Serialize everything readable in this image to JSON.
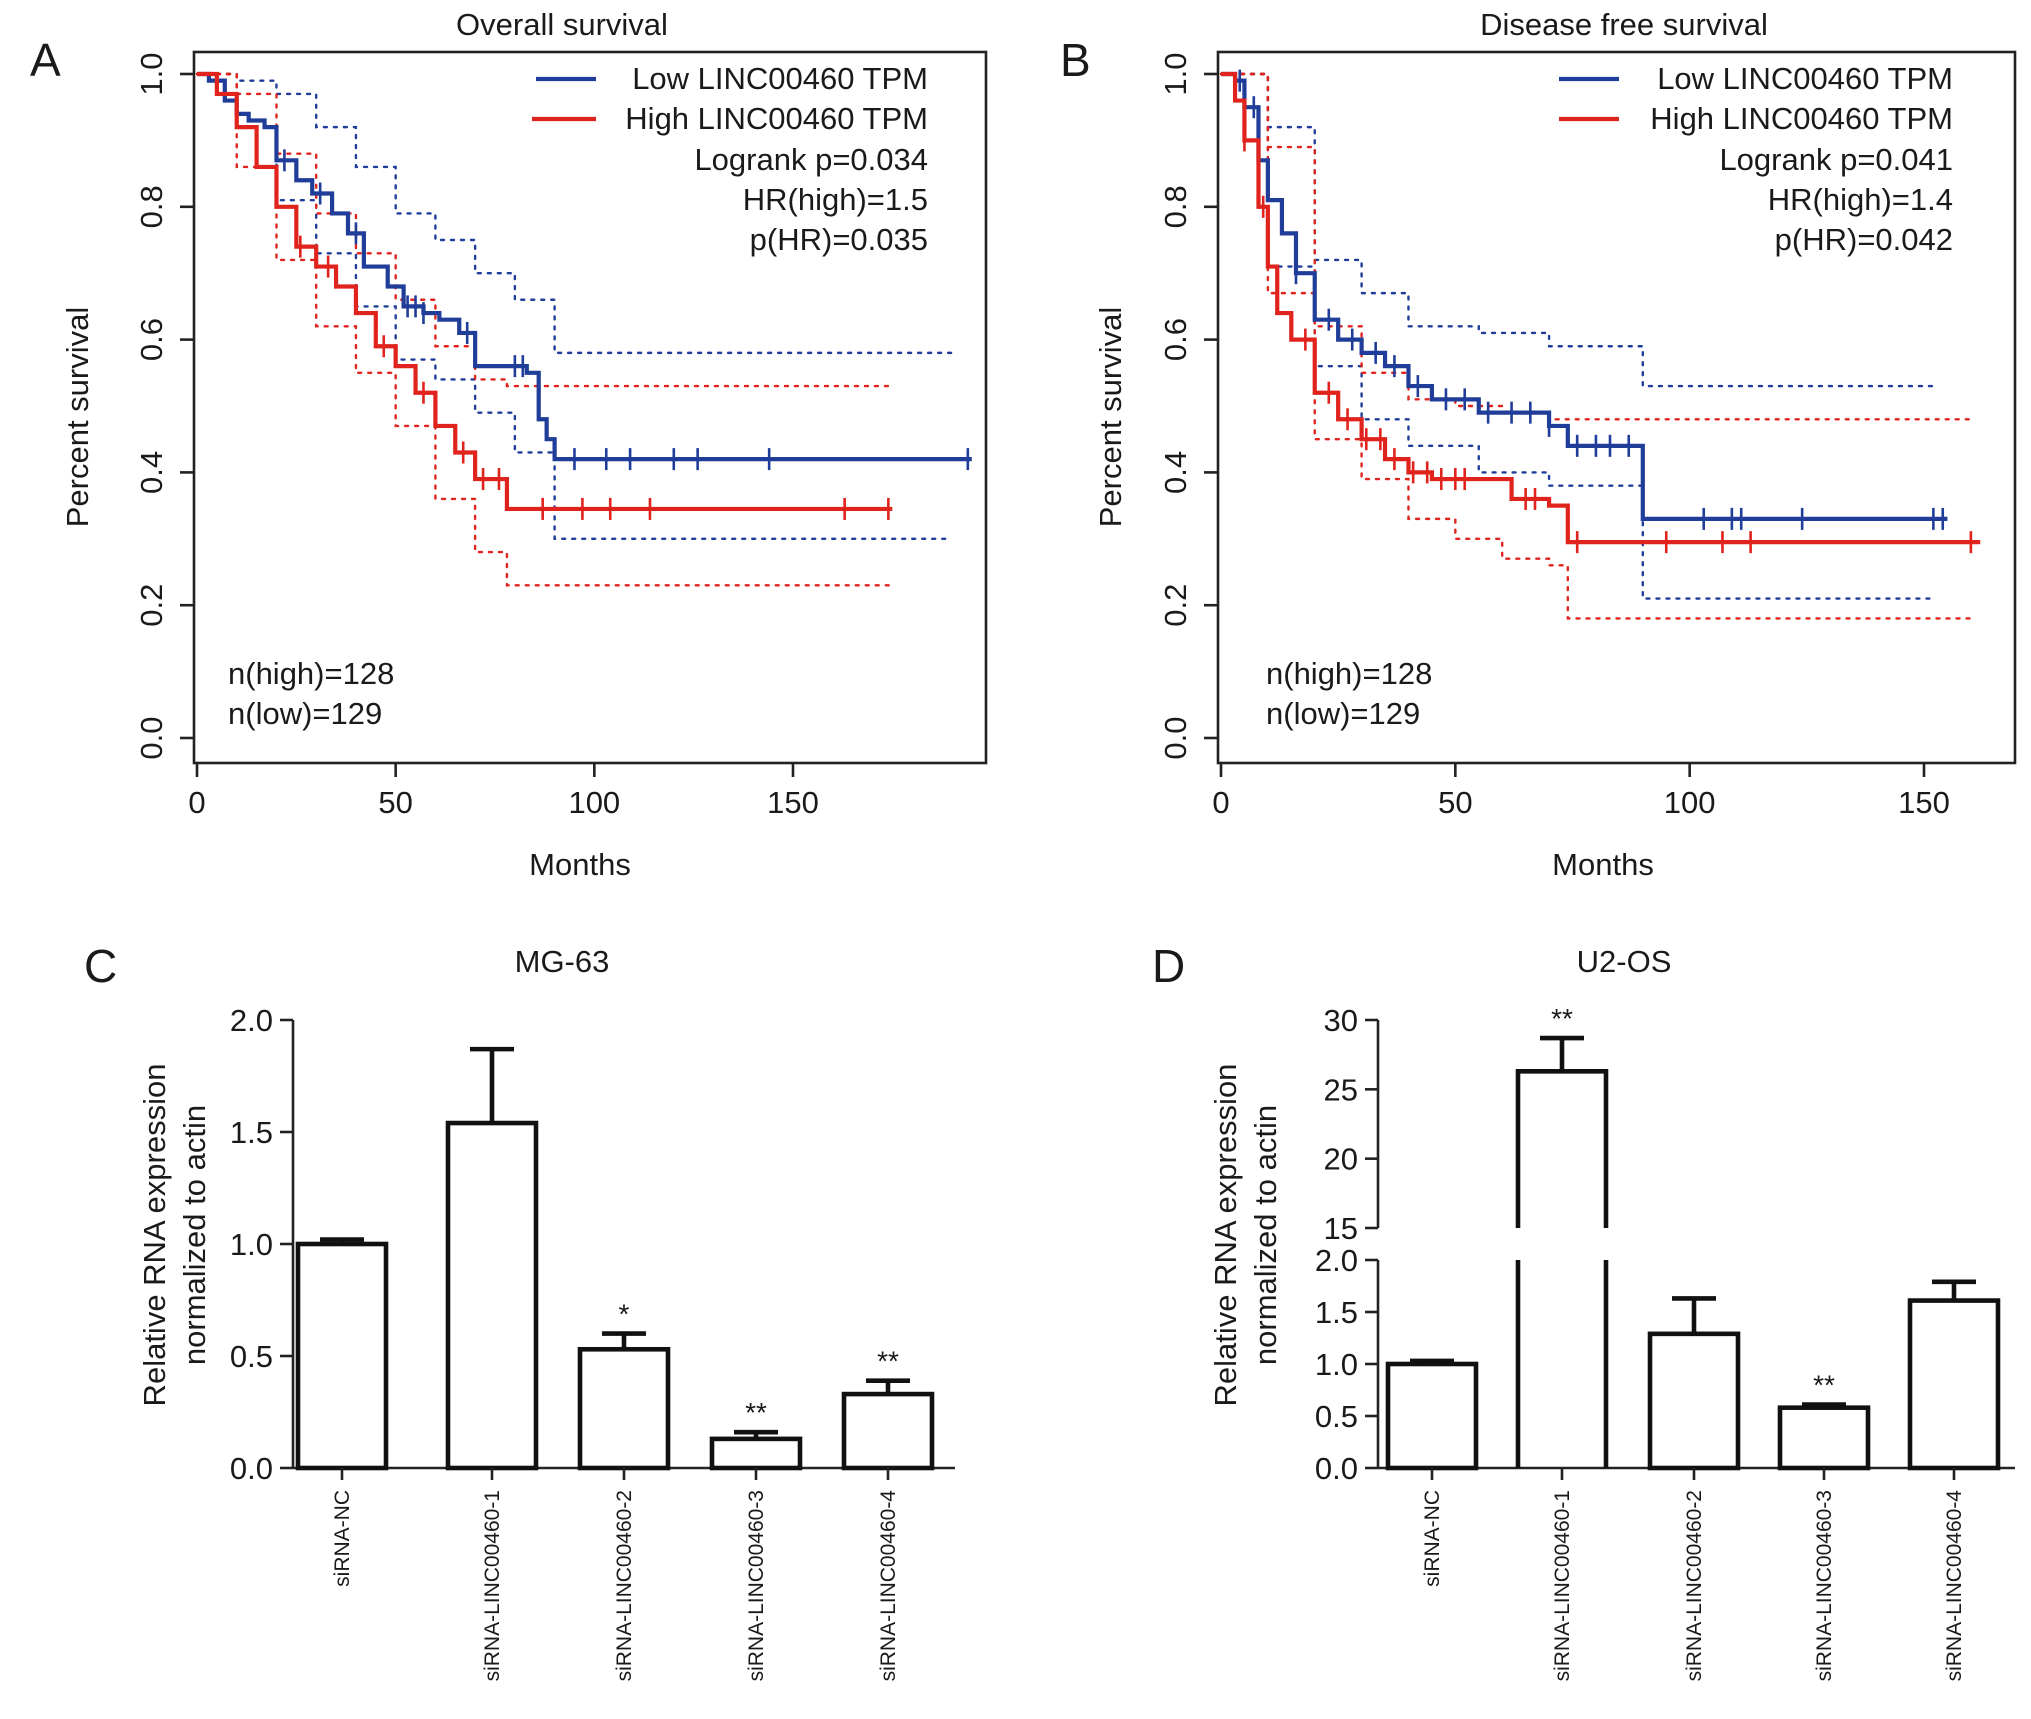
{
  "colors": {
    "low": "#1f3d99",
    "high": "#e0231c",
    "axis": "#222222",
    "bar": "#111111"
  },
  "chart_data": [
    {
      "panel": "A",
      "type": "line",
      "title": "Overall survival",
      "xlabel": "Months",
      "ylabel": "Percent survival",
      "xlim": [
        0,
        195
      ],
      "ylim": [
        0,
        1.0
      ],
      "xticks": [
        "0",
        "50",
        "100",
        "150"
      ],
      "yticks": [
        "0.0",
        "0.2",
        "0.4",
        "0.6",
        "0.8",
        "1.0"
      ],
      "legend": [
        "Low LINC00460 TPM",
        "High LINC00460 TPM"
      ],
      "stats": [
        "Logrank p=0.034",
        "HR(high)=1.5",
        "p(HR)=0.035"
      ],
      "n_labels": [
        "n(high)=128",
        "n(low)=129"
      ],
      "series": [
        {
          "name": "Low LINC00460 TPM",
          "color": "low",
          "x": [
            0,
            3,
            7,
            10,
            13,
            17,
            20,
            25,
            29,
            34,
            38,
            42,
            48,
            52,
            57,
            61,
            66,
            70,
            83,
            86,
            88,
            90,
            195
          ],
          "y": [
            1.0,
            0.99,
            0.96,
            0.94,
            0.93,
            0.92,
            0.87,
            0.84,
            0.82,
            0.79,
            0.76,
            0.71,
            0.68,
            0.65,
            0.64,
            0.63,
            0.61,
            0.56,
            0.55,
            0.48,
            0.45,
            0.42,
            0.42
          ],
          "censor_x": [
            22,
            31,
            40,
            53,
            55,
            57,
            68,
            80,
            82,
            95,
            103,
            109,
            120,
            126,
            144,
            194
          ],
          "ci_upper": {
            "x": [
              0,
              10,
              20,
              30,
              40,
              50,
              60,
              70,
              80,
              90,
              190
            ],
            "y": [
              1.0,
              0.99,
              0.97,
              0.92,
              0.86,
              0.79,
              0.75,
              0.7,
              0.66,
              0.58,
              0.58
            ]
          },
          "ci_lower": {
            "x": [
              0,
              10,
              20,
              30,
              40,
              50,
              60,
              70,
              80,
              90,
              190
            ],
            "y": [
              1.0,
              0.92,
              0.81,
              0.73,
              0.65,
              0.57,
              0.54,
              0.49,
              0.43,
              0.3,
              0.3
            ]
          }
        },
        {
          "name": "High LINC00460 TPM",
          "color": "high",
          "x": [
            0,
            5,
            10,
            15,
            20,
            25,
            30,
            35,
            40,
            45,
            50,
            55,
            60,
            65,
            70,
            77,
            78,
            175
          ],
          "y": [
            1.0,
            0.97,
            0.92,
            0.86,
            0.8,
            0.74,
            0.71,
            0.68,
            0.64,
            0.59,
            0.56,
            0.52,
            0.47,
            0.43,
            0.39,
            0.39,
            0.345,
            0.345
          ],
          "censor_x": [
            26,
            33,
            47,
            57,
            67,
            72,
            76,
            87,
            97,
            104,
            114,
            163,
            174
          ],
          "ci_upper": {
            "x": [
              0,
              10,
              20,
              30,
              40,
              50,
              60,
              70,
              78,
              175
            ],
            "y": [
              1.0,
              0.97,
              0.88,
              0.79,
              0.73,
              0.66,
              0.59,
              0.54,
              0.53,
              0.53
            ]
          },
          "ci_lower": {
            "x": [
              0,
              10,
              20,
              30,
              40,
              50,
              60,
              70,
              78,
              175
            ],
            "y": [
              1.0,
              0.86,
              0.72,
              0.62,
              0.55,
              0.47,
              0.36,
              0.28,
              0.23,
              0.23
            ]
          }
        }
      ]
    },
    {
      "panel": "B",
      "type": "line",
      "title": "Disease free survival",
      "xlabel": "Months",
      "ylabel": "Percent survival",
      "xlim": [
        0,
        165
      ],
      "ylim": [
        0,
        1.0
      ],
      "xticks": [
        "0",
        "50",
        "100",
        "150"
      ],
      "yticks": [
        "0.0",
        "0.2",
        "0.4",
        "0.6",
        "0.8",
        "1.0"
      ],
      "legend": [
        "Low LINC00460 TPM",
        "High LINC00460 TPM"
      ],
      "stats": [
        "Logrank p=0.041",
        "HR(high)=1.4",
        "p(HR)=0.042"
      ],
      "n_labels": [
        "n(high)=128",
        "n(low)=129"
      ],
      "series": [
        {
          "name": "Low LINC00460 TPM",
          "color": "low",
          "x": [
            0,
            3,
            5,
            8,
            10,
            13,
            16,
            20,
            25,
            30,
            35,
            40,
            45,
            55,
            65,
            70,
            74,
            88,
            90,
            155
          ],
          "y": [
            1.0,
            0.99,
            0.95,
            0.87,
            0.81,
            0.76,
            0.7,
            0.63,
            0.6,
            0.58,
            0.56,
            0.53,
            0.51,
            0.49,
            0.49,
            0.47,
            0.44,
            0.44,
            0.33,
            0.33
          ],
          "censor_x": [
            4,
            7,
            16,
            23,
            28,
            33,
            37,
            42,
            48,
            52,
            57,
            62,
            66,
            70,
            76,
            80,
            83,
            87,
            103,
            109,
            111,
            124,
            152,
            154
          ],
          "ci_upper": {
            "x": [
              0,
              10,
              20,
              30,
              40,
              55,
              70,
              90,
              152
            ],
            "y": [
              1.0,
              0.92,
              0.72,
              0.67,
              0.62,
              0.61,
              0.59,
              0.53,
              0.53
            ]
          },
          "ci_lower": {
            "x": [
              0,
              10,
              20,
              30,
              40,
              55,
              70,
              90,
              152
            ],
            "y": [
              1.0,
              0.71,
              0.56,
              0.48,
              0.44,
              0.4,
              0.38,
              0.21,
              0.21
            ]
          }
        },
        {
          "name": "High LINC00460 TPM",
          "color": "high",
          "x": [
            0,
            3,
            5,
            8,
            10,
            12,
            15,
            20,
            25,
            30,
            35,
            40,
            45,
            55,
            60,
            62,
            70,
            73,
            74,
            162
          ],
          "y": [
            1.0,
            0.96,
            0.9,
            0.8,
            0.71,
            0.64,
            0.6,
            0.52,
            0.48,
            0.45,
            0.42,
            0.4,
            0.39,
            0.39,
            0.39,
            0.36,
            0.35,
            0.35,
            0.295,
            0.295
          ],
          "censor_x": [
            5,
            9,
            18,
            23,
            27,
            31,
            34,
            37,
            41,
            44,
            47,
            50,
            52,
            65,
            67,
            76,
            95,
            107,
            113,
            160
          ],
          "ci_upper": {
            "x": [
              0,
              10,
              20,
              30,
              40,
              50,
              60,
              70,
              74,
              160
            ],
            "y": [
              1.0,
              0.89,
              0.62,
              0.55,
              0.51,
              0.5,
              0.49,
              0.48,
              0.48,
              0.48
            ]
          },
          "ci_lower": {
            "x": [
              0,
              10,
              20,
              30,
              40,
              50,
              60,
              70,
              74,
              160
            ],
            "y": [
              1.0,
              0.67,
              0.45,
              0.39,
              0.33,
              0.3,
              0.27,
              0.26,
              0.18,
              0.18
            ]
          }
        }
      ]
    },
    {
      "panel": "C",
      "type": "bar",
      "title": "MG-63",
      "ylabel": [
        "Relative RNA expression",
        "normalized to actin"
      ],
      "ylim": [
        0,
        2.0
      ],
      "yticks": [
        "0.0",
        "0.5",
        "1.0",
        "1.5",
        "2.0"
      ],
      "categories": [
        "siRNA-NC",
        "siRNA-LINC00460-1",
        "siRNA-LINC00460-2",
        "siRNA-LINC00460-3",
        "siRNA-LINC00460-4"
      ],
      "values": [
        1.0,
        1.54,
        0.53,
        0.13,
        0.33
      ],
      "errors": [
        0.02,
        0.33,
        0.07,
        0.03,
        0.06
      ],
      "significance": [
        "",
        "",
        "*",
        "**",
        "**"
      ]
    },
    {
      "panel": "D",
      "type": "bar",
      "title": "U2-OS",
      "ylabel": [
        "Relative RNA expression",
        "normalized to actin"
      ],
      "ylim": [
        0,
        30
      ],
      "axis_break": [
        2.0,
        15
      ],
      "yticks_lower": [
        "0.0",
        "0.5",
        "1.0",
        "1.5",
        "2.0"
      ],
      "yticks_upper": [
        "15",
        "20",
        "25",
        "30"
      ],
      "categories": [
        "siRNA-NC",
        "siRNA-LINC00460-1",
        "siRNA-LINC00460-2",
        "siRNA-LINC00460-3",
        "siRNA-LINC00460-4"
      ],
      "values": [
        1.0,
        26.3,
        1.29,
        0.58,
        1.61
      ],
      "errors": [
        0.03,
        2.4,
        0.34,
        0.03,
        0.18
      ],
      "significance": [
        "",
        "**",
        "",
        "**",
        ""
      ]
    }
  ]
}
